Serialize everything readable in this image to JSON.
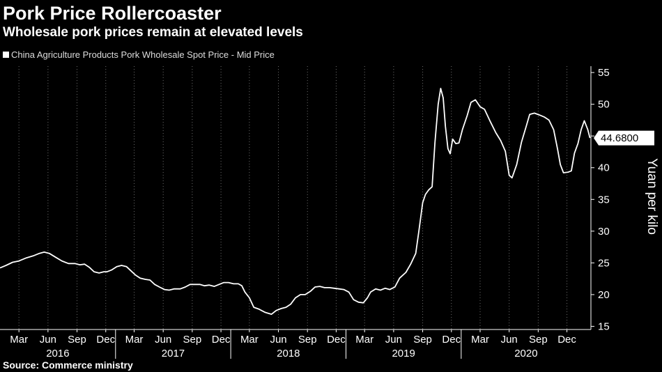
{
  "header": {
    "title": "Pork Price Rollercoaster",
    "subtitle": "Wholesale pork prices remain at elevated levels"
  },
  "footer": {
    "source": "Source: Commerce ministry"
  },
  "colors": {
    "background": "#000000",
    "line": "#ffffff",
    "grid": "#6e6e6e"
  },
  "chart_data": {
    "type": "line",
    "title": "Pork Price Rollercoaster",
    "subtitle": "Wholesale pork prices remain at elevated levels",
    "ylabel": "Yuan per kilo",
    "ylim": [
      14.5,
      56
    ],
    "yticks": [
      15,
      20,
      25,
      30,
      35,
      40,
      45,
      50,
      55
    ],
    "y_axis_position": "right",
    "grid": "vertical dotted lines",
    "legend_position": "top-left",
    "last_value_label": "44.6800",
    "x_tick_labels": [
      {
        "date": "2016-03-01",
        "label": "Mar"
      },
      {
        "date": "2016-06-01",
        "label": "Jun"
      },
      {
        "date": "2016-09-01",
        "label": "Sep"
      },
      {
        "date": "2016-12-01",
        "label": "Dec"
      },
      {
        "date": "2017-03-01",
        "label": "Mar"
      },
      {
        "date": "2017-06-01",
        "label": "Jun"
      },
      {
        "date": "2017-09-01",
        "label": "Sep"
      },
      {
        "date": "2017-12-01",
        "label": "Dec"
      },
      {
        "date": "2018-03-01",
        "label": "Mar"
      },
      {
        "date": "2018-06-01",
        "label": "Jun"
      },
      {
        "date": "2018-09-01",
        "label": "Sep"
      },
      {
        "date": "2018-12-01",
        "label": "Dec"
      },
      {
        "date": "2019-03-01",
        "label": "Mar"
      },
      {
        "date": "2019-06-01",
        "label": "Jun"
      },
      {
        "date": "2019-09-01",
        "label": "Sep"
      },
      {
        "date": "2019-12-01",
        "label": "Dec"
      },
      {
        "date": "2020-03-01",
        "label": "Mar"
      },
      {
        "date": "2020-06-01",
        "label": "Jun"
      },
      {
        "date": "2020-09-01",
        "label": "Sep"
      },
      {
        "date": "2020-12-01",
        "label": "Dec"
      }
    ],
    "years": [
      {
        "label": "2016",
        "start": "2016-01-01"
      },
      {
        "label": "2017",
        "start": "2017-01-01"
      },
      {
        "label": "2018",
        "start": "2018-01-01"
      },
      {
        "label": "2019",
        "start": "2019-01-01"
      },
      {
        "label": "2020",
        "start": "2020-01-01"
      }
    ],
    "xlim": [
      "2016-01-01",
      "2021-02-15"
    ],
    "series": [
      {
        "name": "China Agriculture Products Pork Wholesale Spot Price - Mid Price",
        "points": [
          [
            "2016-01-01",
            24.2
          ],
          [
            "2016-01-20",
            24.6
          ],
          [
            "2016-02-10",
            25.1
          ],
          [
            "2016-03-01",
            25.3
          ],
          [
            "2016-03-25",
            25.8
          ],
          [
            "2016-04-15",
            26.1
          ],
          [
            "2016-05-05",
            26.5
          ],
          [
            "2016-05-20",
            26.7
          ],
          [
            "2016-06-05",
            26.5
          ],
          [
            "2016-06-25",
            25.9
          ],
          [
            "2016-07-15",
            25.3
          ],
          [
            "2016-08-05",
            24.9
          ],
          [
            "2016-08-25",
            24.9
          ],
          [
            "2016-09-10",
            24.7
          ],
          [
            "2016-09-25",
            24.8
          ],
          [
            "2016-10-10",
            24.3
          ],
          [
            "2016-10-25",
            23.6
          ],
          [
            "2016-11-10",
            23.4
          ],
          [
            "2016-11-25",
            23.6
          ],
          [
            "2016-12-05",
            23.6
          ],
          [
            "2016-12-20",
            23.9
          ],
          [
            "2017-01-05",
            24.4
          ],
          [
            "2017-01-20",
            24.6
          ],
          [
            "2017-02-05",
            24.4
          ],
          [
            "2017-02-20",
            23.7
          ],
          [
            "2017-03-05",
            23.1
          ],
          [
            "2017-03-20",
            22.6
          ],
          [
            "2017-04-05",
            22.4
          ],
          [
            "2017-04-20",
            22.3
          ],
          [
            "2017-05-05",
            21.6
          ],
          [
            "2017-05-20",
            21.2
          ],
          [
            "2017-06-05",
            20.8
          ],
          [
            "2017-06-20",
            20.7
          ],
          [
            "2017-07-05",
            20.9
          ],
          [
            "2017-07-25",
            20.9
          ],
          [
            "2017-08-10",
            21.2
          ],
          [
            "2017-08-25",
            21.6
          ],
          [
            "2017-09-10",
            21.6
          ],
          [
            "2017-09-25",
            21.6
          ],
          [
            "2017-10-10",
            21.4
          ],
          [
            "2017-10-25",
            21.5
          ],
          [
            "2017-11-10",
            21.3
          ],
          [
            "2017-11-25",
            21.6
          ],
          [
            "2017-12-10",
            21.9
          ],
          [
            "2017-12-25",
            21.9
          ],
          [
            "2018-01-10",
            21.7
          ],
          [
            "2018-01-25",
            21.7
          ],
          [
            "2018-02-05",
            21.4
          ],
          [
            "2018-02-15",
            20.4
          ],
          [
            "2018-03-01",
            19.5
          ],
          [
            "2018-03-15",
            18.0
          ],
          [
            "2018-04-01",
            17.7
          ],
          [
            "2018-04-20",
            17.2
          ],
          [
            "2018-05-10",
            16.9
          ],
          [
            "2018-05-25",
            17.5
          ],
          [
            "2018-06-10",
            17.8
          ],
          [
            "2018-06-25",
            18.0
          ],
          [
            "2018-07-10",
            18.5
          ],
          [
            "2018-07-25",
            19.5
          ],
          [
            "2018-08-10",
            20.0
          ],
          [
            "2018-08-25",
            20.0
          ],
          [
            "2018-09-10",
            20.5
          ],
          [
            "2018-09-25",
            21.2
          ],
          [
            "2018-10-10",
            21.3
          ],
          [
            "2018-10-25",
            21.1
          ],
          [
            "2018-11-10",
            21.1
          ],
          [
            "2018-11-25",
            21.0
          ],
          [
            "2018-12-10",
            20.9
          ],
          [
            "2018-12-25",
            20.8
          ],
          [
            "2019-01-10",
            20.4
          ],
          [
            "2019-01-25",
            19.2
          ],
          [
            "2019-02-10",
            18.8
          ],
          [
            "2019-02-25",
            18.7
          ],
          [
            "2019-03-10",
            19.5
          ],
          [
            "2019-03-20",
            20.4
          ],
          [
            "2019-04-05",
            20.9
          ],
          [
            "2019-04-20",
            20.7
          ],
          [
            "2019-05-05",
            21.0
          ],
          [
            "2019-05-20",
            20.8
          ],
          [
            "2019-06-05",
            21.2
          ],
          [
            "2019-06-20",
            22.6
          ],
          [
            "2019-07-10",
            23.5
          ],
          [
            "2019-07-25",
            24.8
          ],
          [
            "2019-08-10",
            26.5
          ],
          [
            "2019-08-20",
            30.0
          ],
          [
            "2019-09-01",
            34.5
          ],
          [
            "2019-09-10",
            35.8
          ],
          [
            "2019-09-20",
            36.5
          ],
          [
            "2019-10-01",
            37.0
          ],
          [
            "2019-10-10",
            44.0
          ],
          [
            "2019-10-20",
            50.0
          ],
          [
            "2019-10-28",
            52.5
          ],
          [
            "2019-11-05",
            51.0
          ],
          [
            "2019-11-12",
            46.5
          ],
          [
            "2019-11-20",
            43.0
          ],
          [
            "2019-11-27",
            42.2
          ],
          [
            "2019-12-05",
            44.5
          ],
          [
            "2019-12-15",
            43.8
          ],
          [
            "2019-12-25",
            43.9
          ],
          [
            "2020-01-05",
            46.0
          ],
          [
            "2020-01-20",
            48.2
          ],
          [
            "2020-02-01",
            50.3
          ],
          [
            "2020-02-15",
            50.7
          ],
          [
            "2020-03-01",
            49.6
          ],
          [
            "2020-03-15",
            49.2
          ],
          [
            "2020-04-01",
            47.4
          ],
          [
            "2020-04-20",
            45.5
          ],
          [
            "2020-05-05",
            44.3
          ],
          [
            "2020-05-20",
            42.6
          ],
          [
            "2020-06-01",
            38.8
          ],
          [
            "2020-06-10",
            38.4
          ],
          [
            "2020-06-25",
            40.5
          ],
          [
            "2020-07-10",
            44.0
          ],
          [
            "2020-07-25",
            46.5
          ],
          [
            "2020-08-05",
            48.4
          ],
          [
            "2020-08-20",
            48.6
          ],
          [
            "2020-09-05",
            48.3
          ],
          [
            "2020-09-20",
            48.0
          ],
          [
            "2020-10-05",
            47.5
          ],
          [
            "2020-10-20",
            46.0
          ],
          [
            "2020-11-01",
            43.0
          ],
          [
            "2020-11-10",
            40.5
          ],
          [
            "2020-11-20",
            39.2
          ],
          [
            "2020-12-05",
            39.3
          ],
          [
            "2020-12-15",
            39.5
          ],
          [
            "2020-12-25",
            42.3
          ],
          [
            "2021-01-05",
            43.8
          ],
          [
            "2021-01-15",
            46.0
          ],
          [
            "2021-01-25",
            47.4
          ],
          [
            "2021-02-05",
            46.0
          ],
          [
            "2021-02-12",
            44.68
          ]
        ]
      }
    ]
  }
}
